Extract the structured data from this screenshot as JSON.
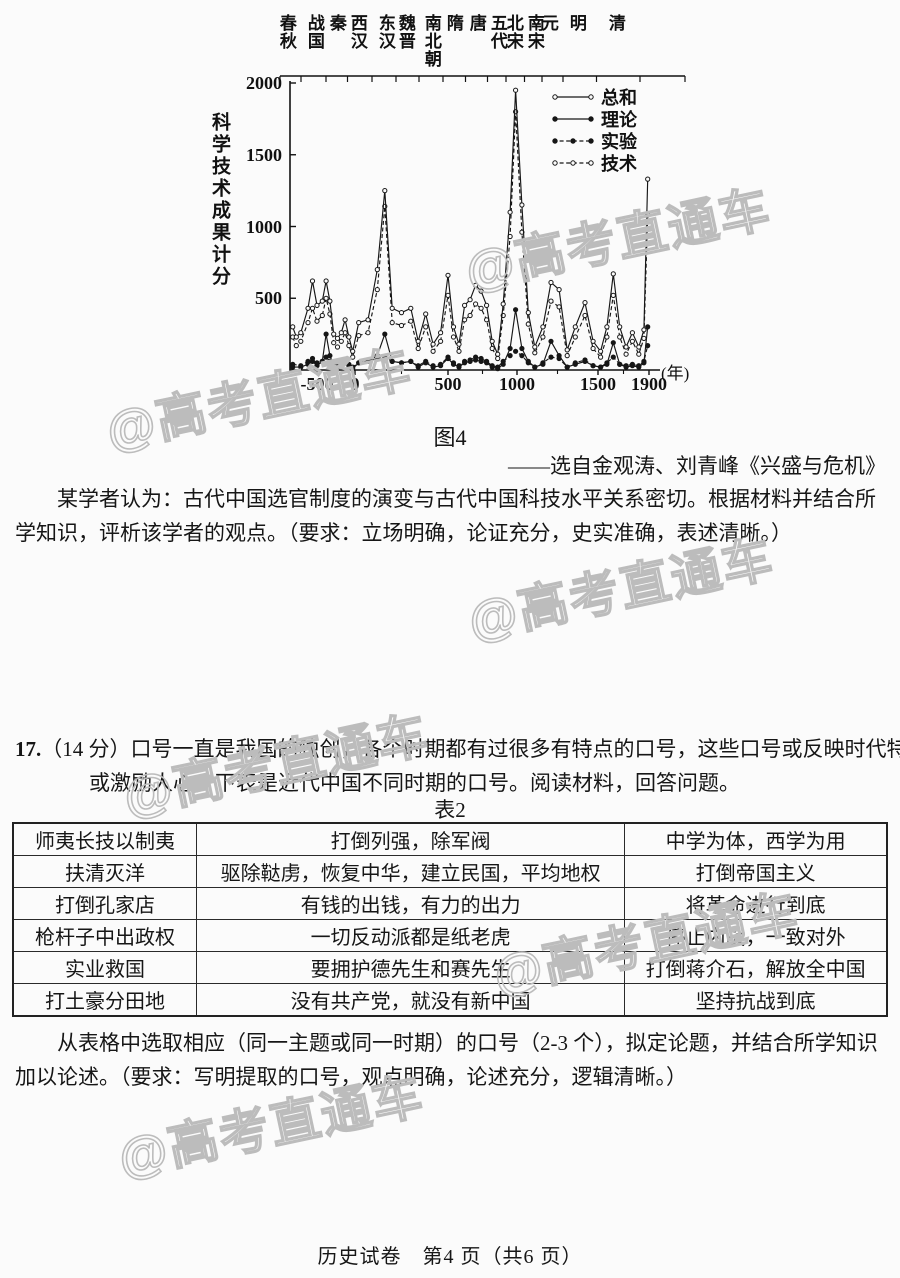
{
  "page": {
    "footer": "历史试卷　第4 页（共6 页）"
  },
  "watermark": {
    "text": "@高考直通车"
  },
  "figure": {
    "caption": "图4",
    "source": "——选自金观涛、刘青峰《兴盛与危机》"
  },
  "evaluation": {
    "text": "某学者认为：古代中国选官制度的演变与古代中国科技水平关系密切。根据材料并结合所学知识，评析该学者的观点。（要求：立场明确，论证充分，史实准确，表述清晰。）"
  },
  "question17": {
    "number": "17.",
    "score": "（14 分）",
    "text": "口号一直是我国的独创，各个时期都有过很多有特点的口号，这些口号或反映时代特点，或激励人心，下表是近代中国不同时期的口号。阅读材料，回答问题。",
    "table_caption": "表2",
    "table": {
      "rows": [
        [
          "师夷长技以制夷",
          "打倒列强，除军阀",
          "中学为体，西学为用"
        ],
        [
          "扶清灭洋",
          "驱除鞑虏，恢复中华，建立民国，平均地权",
          "打倒帝国主义"
        ],
        [
          "打倒孔家店",
          "有钱的出钱，有力的出力",
          "将革命进行到底"
        ],
        [
          "枪杆子中出政权",
          "一切反动派都是纸老虎",
          "停止内战，一致对外"
        ],
        [
          "实业救国",
          "要拥护德先生和赛先生",
          "打倒蒋介石，解放全中国"
        ],
        [
          "打土豪分田地",
          "没有共产党，就没有新中国",
          "坚持抗战到底"
        ]
      ]
    },
    "instruction": "从表格中选取相应（同一主题或同一时期）的口号（2-3 个），拟定论题，并结合所学知识加以论述。（要求：写明提取的口号，观点明确，论述充分，逻辑清晰。）"
  },
  "chart_data": {
    "type": "line",
    "title": "",
    "ylabel": "科学技术成果计分",
    "xlabel_unit": "(年)",
    "ylim": [
      0,
      2000
    ],
    "yticks": [
      500,
      1000,
      1500,
      2000
    ],
    "xticks": [
      -500,
      0,
      500,
      1000,
      1500,
      1900
    ],
    "grid": false,
    "legend_position": "top-right-inside",
    "dynasties": [
      {
        "label": "春秋",
        "x": 107
      },
      {
        "label": "战国",
        "x": 135
      },
      {
        "label": "秦",
        "x": 157
      },
      {
        "label": "西汉",
        "x": 178
      },
      {
        "label": "东汉",
        "x": 206
      },
      {
        "label": "魏晋",
        "x": 226
      },
      {
        "label": "南北朝",
        "x": 252
      },
      {
        "label": "隋",
        "x": 274
      },
      {
        "label": "唐",
        "x": 297
      },
      {
        "label": "五代",
        "x": 318
      },
      {
        "label": "北宋",
        "x": 334
      },
      {
        "label": "南宋",
        "x": 355
      },
      {
        "label": "元",
        "x": 369
      },
      {
        "label": "明",
        "x": 397
      },
      {
        "label": "清",
        "x": 436
      }
    ],
    "series": [
      {
        "name": "总和",
        "line": "solid",
        "marker": "open",
        "points": [
          [
            -770,
            300
          ],
          [
            -730,
            230
          ],
          [
            -680,
            260
          ],
          [
            -600,
            430
          ],
          [
            -550,
            620
          ],
          [
            -500,
            450
          ],
          [
            -430,
            480
          ],
          [
            -380,
            620
          ],
          [
            -330,
            480
          ],
          [
            -280,
            250
          ],
          [
            -230,
            220
          ],
          [
            -180,
            260
          ],
          [
            -130,
            350
          ],
          [
            -80,
            230
          ],
          [
            -30,
            130
          ],
          [
            20,
            330
          ],
          [
            70,
            350
          ],
          [
            120,
            700
          ],
          [
            160,
            1250
          ],
          [
            200,
            430
          ],
          [
            250,
            400
          ],
          [
            300,
            430
          ],
          [
            340,
            200
          ],
          [
            380,
            390
          ],
          [
            420,
            180
          ],
          [
            460,
            260
          ],
          [
            500,
            660
          ],
          [
            540,
            300
          ],
          [
            580,
            180
          ],
          [
            620,
            450
          ],
          [
            660,
            490
          ],
          [
            700,
            590
          ],
          [
            740,
            550
          ],
          [
            780,
            450
          ],
          [
            820,
            200
          ],
          [
            860,
            110
          ],
          [
            900,
            460
          ],
          [
            950,
            1100
          ],
          [
            990,
            1950
          ],
          [
            1030,
            1150
          ],
          [
            1070,
            400
          ],
          [
            1110,
            160
          ],
          [
            1160,
            300
          ],
          [
            1210,
            610
          ],
          [
            1260,
            560
          ],
          [
            1310,
            140
          ],
          [
            1360,
            300
          ],
          [
            1420,
            470
          ],
          [
            1470,
            200
          ],
          [
            1520,
            130
          ],
          [
            1570,
            300
          ],
          [
            1620,
            670
          ],
          [
            1670,
            300
          ],
          [
            1720,
            160
          ],
          [
            1770,
            260
          ],
          [
            1820,
            160
          ],
          [
            1860,
            280
          ],
          [
            1890,
            1330
          ]
        ]
      },
      {
        "name": "理论",
        "line": "solid",
        "marker": "filled",
        "points": [
          [
            -770,
            20
          ],
          [
            -680,
            20
          ],
          [
            -600,
            40
          ],
          [
            -550,
            60
          ],
          [
            -500,
            30
          ],
          [
            -430,
            60
          ],
          [
            -380,
            250
          ],
          [
            -330,
            100
          ],
          [
            -280,
            30
          ],
          [
            -230,
            20
          ],
          [
            -180,
            30
          ],
          [
            -130,
            70
          ],
          [
            -80,
            30
          ],
          [
            -30,
            10
          ],
          [
            20,
            50
          ],
          [
            70,
            60
          ],
          [
            120,
            100
          ],
          [
            160,
            250
          ],
          [
            200,
            60
          ],
          [
            250,
            50
          ],
          [
            300,
            60
          ],
          [
            340,
            20
          ],
          [
            380,
            50
          ],
          [
            420,
            20
          ],
          [
            460,
            30
          ],
          [
            500,
            80
          ],
          [
            540,
            40
          ],
          [
            580,
            20
          ],
          [
            620,
            50
          ],
          [
            660,
            60
          ],
          [
            700,
            70
          ],
          [
            740,
            60
          ],
          [
            780,
            50
          ],
          [
            820,
            20
          ],
          [
            860,
            10
          ],
          [
            900,
            40
          ],
          [
            950,
            150
          ],
          [
            990,
            420
          ],
          [
            1030,
            150
          ],
          [
            1070,
            60
          ],
          [
            1110,
            20
          ],
          [
            1160,
            40
          ],
          [
            1210,
            200
          ],
          [
            1260,
            100
          ],
          [
            1310,
            20
          ],
          [
            1360,
            40
          ],
          [
            1420,
            60
          ],
          [
            1470,
            30
          ],
          [
            1520,
            20
          ],
          [
            1570,
            40
          ],
          [
            1620,
            190
          ],
          [
            1670,
            40
          ],
          [
            1720,
            20
          ],
          [
            1770,
            30
          ],
          [
            1820,
            20
          ],
          [
            1860,
            50
          ],
          [
            1890,
            300
          ]
        ]
      },
      {
        "name": "实验",
        "line": "dashed",
        "marker": "filled",
        "points": [
          [
            -770,
            40
          ],
          [
            -680,
            30
          ],
          [
            -600,
            60
          ],
          [
            -550,
            80
          ],
          [
            -500,
            50
          ],
          [
            -430,
            60
          ],
          [
            -380,
            90
          ],
          [
            -330,
            60
          ],
          [
            -280,
            30
          ],
          [
            -230,
            30
          ],
          [
            -180,
            40
          ],
          [
            -130,
            60
          ],
          [
            -80,
            40
          ],
          [
            -30,
            20
          ],
          [
            20,
            50
          ],
          [
            70,
            60
          ],
          [
            120,
            80
          ],
          [
            160,
            90
          ],
          [
            200,
            60
          ],
          [
            250,
            50
          ],
          [
            300,
            60
          ],
          [
            340,
            30
          ],
          [
            380,
            60
          ],
          [
            420,
            30
          ],
          [
            460,
            40
          ],
          [
            500,
            90
          ],
          [
            540,
            50
          ],
          [
            580,
            30
          ],
          [
            620,
            60
          ],
          [
            660,
            70
          ],
          [
            700,
            90
          ],
          [
            740,
            80
          ],
          [
            780,
            60
          ],
          [
            820,
            30
          ],
          [
            860,
            20
          ],
          [
            900,
            60
          ],
          [
            950,
            100
          ],
          [
            990,
            130
          ],
          [
            1030,
            100
          ],
          [
            1070,
            50
          ],
          [
            1110,
            20
          ],
          [
            1160,
            50
          ],
          [
            1210,
            90
          ],
          [
            1260,
            80
          ],
          [
            1310,
            20
          ],
          [
            1360,
            50
          ],
          [
            1420,
            70
          ],
          [
            1470,
            30
          ],
          [
            1520,
            20
          ],
          [
            1570,
            50
          ],
          [
            1620,
            90
          ],
          [
            1670,
            40
          ],
          [
            1720,
            30
          ],
          [
            1770,
            40
          ],
          [
            1820,
            30
          ],
          [
            1860,
            60
          ],
          [
            1890,
            170
          ]
        ]
      },
      {
        "name": "技术",
        "line": "dashed",
        "marker": "open",
        "points": [
          [
            -770,
            230
          ],
          [
            -730,
            170
          ],
          [
            -680,
            200
          ],
          [
            -600,
            330
          ],
          [
            -550,
            430
          ],
          [
            -500,
            340
          ],
          [
            -430,
            380
          ],
          [
            -380,
            500
          ],
          [
            -330,
            390
          ],
          [
            -280,
            190
          ],
          [
            -230,
            160
          ],
          [
            -180,
            200
          ],
          [
            -130,
            260
          ],
          [
            -80,
            170
          ],
          [
            -30,
            90
          ],
          [
            20,
            240
          ],
          [
            70,
            260
          ],
          [
            120,
            560
          ],
          [
            160,
            1140
          ],
          [
            200,
            330
          ],
          [
            250,
            310
          ],
          [
            300,
            340
          ],
          [
            340,
            150
          ],
          [
            380,
            300
          ],
          [
            420,
            130
          ],
          [
            460,
            200
          ],
          [
            500,
            520
          ],
          [
            540,
            230
          ],
          [
            580,
            130
          ],
          [
            620,
            350
          ],
          [
            660,
            380
          ],
          [
            700,
            460
          ],
          [
            740,
            430
          ],
          [
            780,
            350
          ],
          [
            820,
            150
          ],
          [
            860,
            80
          ],
          [
            900,
            380
          ],
          [
            950,
            930
          ],
          [
            990,
            1800
          ],
          [
            1030,
            960
          ],
          [
            1070,
            320
          ],
          [
            1110,
            120
          ],
          [
            1160,
            230
          ],
          [
            1210,
            480
          ],
          [
            1260,
            440
          ],
          [
            1310,
            100
          ],
          [
            1360,
            230
          ],
          [
            1420,
            380
          ],
          [
            1470,
            150
          ],
          [
            1520,
            90
          ],
          [
            1570,
            230
          ],
          [
            1620,
            520
          ],
          [
            1670,
            230
          ],
          [
            1720,
            110
          ],
          [
            1770,
            200
          ],
          [
            1820,
            110
          ],
          [
            1860,
            220
          ],
          [
            1890,
            1080
          ]
        ]
      }
    ]
  }
}
